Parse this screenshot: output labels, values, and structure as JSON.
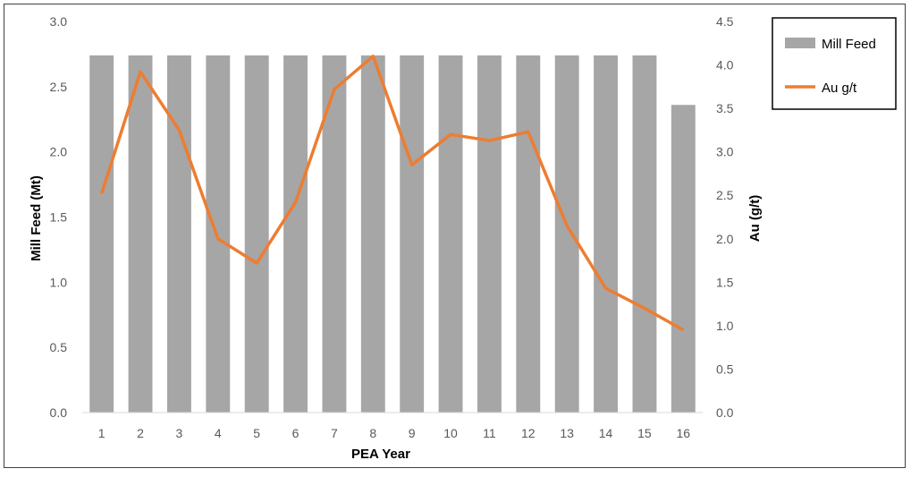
{
  "chart_data": {
    "type": "bar",
    "xlabel": "PEA Year",
    "ylabel": "Mill Feed (Mt)",
    "y2label": "Au (g/t)",
    "categories": [
      "1",
      "2",
      "3",
      "4",
      "5",
      "6",
      "7",
      "8",
      "9",
      "10",
      "11",
      "12",
      "13",
      "14",
      "15",
      "16"
    ],
    "ylim": [
      0,
      3.0
    ],
    "y_ticks": [
      "0.0",
      "0.5",
      "1.0",
      "1.5",
      "2.0",
      "2.5",
      "3.0"
    ],
    "y2lim": [
      0,
      4.5
    ],
    "y2_ticks": [
      "0.0",
      "0.5",
      "1.0",
      "1.5",
      "2.0",
      "2.5",
      "3.0",
      "3.5",
      "4.0",
      "4.5"
    ],
    "grid": false,
    "legend_position": "top-right",
    "series": [
      {
        "name": "Mill Feed",
        "type": "bar",
        "axis": "left",
        "color": "#A6A6A6",
        "values": [
          2.74,
          2.74,
          2.74,
          2.74,
          2.74,
          2.74,
          2.74,
          2.74,
          2.74,
          2.74,
          2.74,
          2.74,
          2.74,
          2.74,
          2.74,
          2.36
        ]
      },
      {
        "name": "Au g/t",
        "type": "line",
        "axis": "right",
        "color": "#ED7D31",
        "values": [
          2.52,
          3.92,
          3.25,
          2.0,
          1.72,
          2.42,
          3.72,
          4.1,
          2.85,
          3.2,
          3.13,
          3.23,
          2.15,
          1.43,
          1.2,
          0.95
        ]
      }
    ]
  }
}
